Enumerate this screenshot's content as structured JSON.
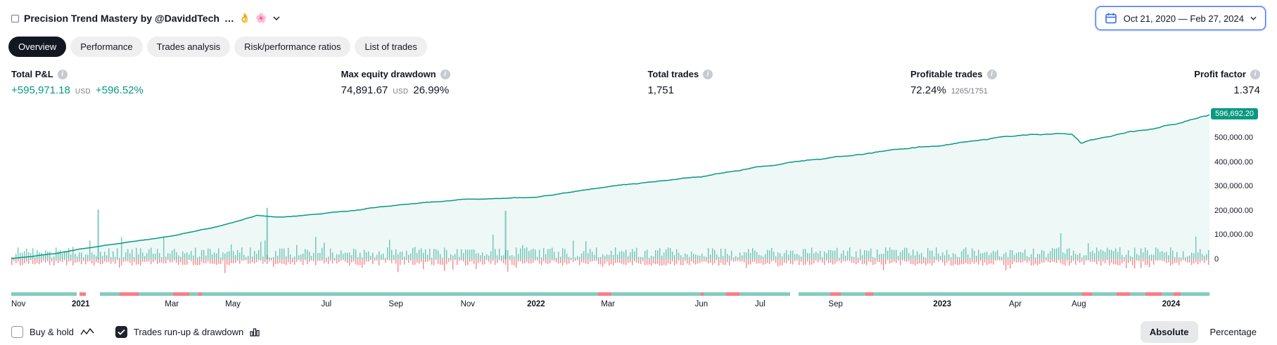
{
  "header": {
    "title": "Precision Trend Mastery by @DaviddTech",
    "title_suffix": "…",
    "emoji_badges": [
      "👌",
      "🌸"
    ],
    "date_range": "Oct 21, 2020 — Feb 27, 2024"
  },
  "tabs": [
    {
      "label": "Overview",
      "active": true
    },
    {
      "label": "Performance",
      "active": false
    },
    {
      "label": "Trades analysis",
      "active": false
    },
    {
      "label": "Risk/performance ratios",
      "active": false
    },
    {
      "label": "List of trades",
      "active": false
    }
  ],
  "stats": [
    {
      "label": "Total P&L",
      "value": "+595,971.18",
      "value_class": "pos",
      "unit": "USD",
      "secondary": "+596.52%",
      "secondary_class": "pos"
    },
    {
      "label": "Max equity drawdown",
      "value": "74,891.67",
      "unit": "USD",
      "secondary": "26.99%"
    },
    {
      "label": "Total trades",
      "value": "1,751"
    },
    {
      "label": "Profitable trades",
      "value": "72.24%",
      "secondary": "1265/1751",
      "secondary_class": "small"
    },
    {
      "label": "Profit factor",
      "value": "1.374",
      "align": "right"
    }
  ],
  "chart_data": {
    "type": "line",
    "title": "Strategy equity curve with trade run-up/drawdown bars",
    "legend_position": "none",
    "grid": false,
    "last_value": 596692.2,
    "last_value_label": "596,692.20",
    "ylim": [
      0,
      640000
    ],
    "y_ticks": [
      {
        "v": 500000,
        "label": "500,000.00"
      },
      {
        "v": 400000,
        "label": "400,000.00"
      },
      {
        "v": 300000,
        "label": "300,000.00"
      },
      {
        "v": 200000,
        "label": "200,000.00"
      },
      {
        "v": 100000,
        "label": "100,000.00"
      },
      {
        "v": 0,
        "label": "0"
      }
    ],
    "x_ticks": [
      {
        "f": 0.006,
        "label": "Nov",
        "bold": false
      },
      {
        "f": 0.058,
        "label": "2021",
        "bold": true
      },
      {
        "f": 0.134,
        "label": "Mar",
        "bold": false
      },
      {
        "f": 0.185,
        "label": "May",
        "bold": false
      },
      {
        "f": 0.263,
        "label": "Jul",
        "bold": false
      },
      {
        "f": 0.321,
        "label": "Sep",
        "bold": false
      },
      {
        "f": 0.381,
        "label": "Nov",
        "bold": false
      },
      {
        "f": 0.438,
        "label": "2022",
        "bold": true
      },
      {
        "f": 0.498,
        "label": "Mar",
        "bold": false
      },
      {
        "f": 0.576,
        "label": "Jun",
        "bold": false
      },
      {
        "f": 0.625,
        "label": "Jul",
        "bold": false
      },
      {
        "f": 0.688,
        "label": "Sep",
        "bold": false
      },
      {
        "f": 0.777,
        "label": "2023",
        "bold": true
      },
      {
        "f": 0.838,
        "label": "Apr",
        "bold": false
      },
      {
        "f": 0.891,
        "label": "Aug",
        "bold": false
      },
      {
        "f": 0.968,
        "label": "2024",
        "bold": true
      }
    ],
    "equity_anchors": [
      [
        0,
        3000
      ],
      [
        0.02,
        14000
      ],
      [
        0.04,
        26000
      ],
      [
        0.058,
        42000
      ],
      [
        0.08,
        58000
      ],
      [
        0.1,
        72000
      ],
      [
        0.134,
        95000
      ],
      [
        0.16,
        122000
      ],
      [
        0.185,
        150000
      ],
      [
        0.205,
        180000
      ],
      [
        0.225,
        172000
      ],
      [
        0.245,
        182000
      ],
      [
        0.263,
        190000
      ],
      [
        0.29,
        205000
      ],
      [
        0.321,
        224000
      ],
      [
        0.35,
        236000
      ],
      [
        0.381,
        248000
      ],
      [
        0.41,
        252000
      ],
      [
        0.438,
        258000
      ],
      [
        0.468,
        278000
      ],
      [
        0.498,
        300000
      ],
      [
        0.53,
        316000
      ],
      [
        0.556,
        330000
      ],
      [
        0.576,
        341000
      ],
      [
        0.6,
        362000
      ],
      [
        0.625,
        380000
      ],
      [
        0.655,
        400000
      ],
      [
        0.688,
        420000
      ],
      [
        0.72,
        441000
      ],
      [
        0.75,
        458000
      ],
      [
        0.777,
        472000
      ],
      [
        0.81,
        492000
      ],
      [
        0.838,
        506000
      ],
      [
        0.862,
        516000
      ],
      [
        0.885,
        518000
      ],
      [
        0.893,
        478000
      ],
      [
        0.915,
        505000
      ],
      [
        0.94,
        528000
      ],
      [
        0.968,
        556000
      ],
      [
        0.985,
        576000
      ],
      [
        1,
        596692
      ]
    ],
    "spikes": [
      [
        0.072,
        205000
      ],
      [
        0.213,
        212000
      ],
      [
        0.412,
        200000
      ]
    ],
    "colors": {
      "line": "#089981",
      "runup": "#089981",
      "drawdown": "#f7525f",
      "badge": "#089981"
    }
  },
  "footer": {
    "buy_hold_label": "Buy & hold",
    "buy_hold_checked": false,
    "runup_label": "Trades run-up & drawdown",
    "runup_checked": true,
    "absolute_label": "Absolute",
    "percentage_label": "Percentage"
  }
}
